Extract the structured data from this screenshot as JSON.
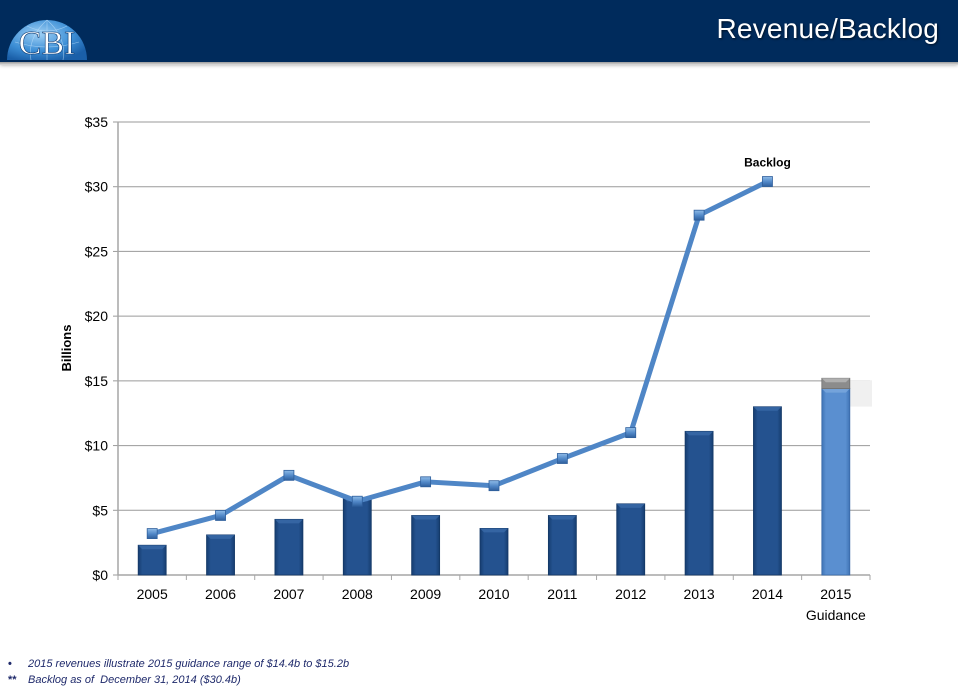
{
  "header": {
    "logo_text": "CBI",
    "title": "Revenue/Backlog"
  },
  "colors": {
    "header_bg": "#002b5c",
    "bar": "#1f4e8c",
    "bar_guidance": "#5a8fd0",
    "guidance_range": "#8c8c8c",
    "backlog_line": "#4f86c6",
    "grid": "#9a9a9a"
  },
  "chart_data": {
    "type": "bar",
    "title": "",
    "xlabel": "",
    "ylabel": "Billions",
    "ylim": [
      0,
      35
    ],
    "y_ticks": [
      0,
      5,
      10,
      15,
      20,
      25,
      30,
      35
    ],
    "y_tick_labels": [
      "$0",
      "$5",
      "$10",
      "$15",
      "$20",
      "$25",
      "$30",
      "$35"
    ],
    "grid": true,
    "categories": [
      "2005",
      "2006",
      "2007",
      "2008",
      "2009",
      "2010",
      "2011",
      "2012",
      "2013",
      "2014",
      "2015"
    ],
    "category_sublabels": [
      "",
      "",
      "",
      "",
      "",
      "",
      "",
      "",
      "",
      "",
      "Guidance"
    ],
    "series": [
      {
        "name": "Revenue",
        "type": "bar",
        "values": [
          2.3,
          3.1,
          4.3,
          6.0,
          4.6,
          3.6,
          4.6,
          5.5,
          11.1,
          13.0,
          14.4
        ]
      },
      {
        "name": "2015 Guidance Range",
        "type": "bar-stacked",
        "values": [
          null,
          null,
          null,
          null,
          null,
          null,
          null,
          null,
          null,
          null,
          0.8
        ],
        "range": [
          14.4,
          15.2
        ]
      },
      {
        "name": "Backlog",
        "type": "line",
        "values": [
          3.2,
          4.6,
          7.7,
          5.7,
          7.2,
          6.9,
          9.0,
          11.0,
          27.8,
          30.4,
          null
        ],
        "label": "Backlog"
      }
    ],
    "legend": "none"
  },
  "footnotes": [
    {
      "marker": "•",
      "text": "2015 revenues illustrate 2015 guidance range of $14.4b to $15.2b"
    },
    {
      "marker": "**",
      "text": "Backlog as of  December 31, 2014 ($30.4b)"
    }
  ]
}
